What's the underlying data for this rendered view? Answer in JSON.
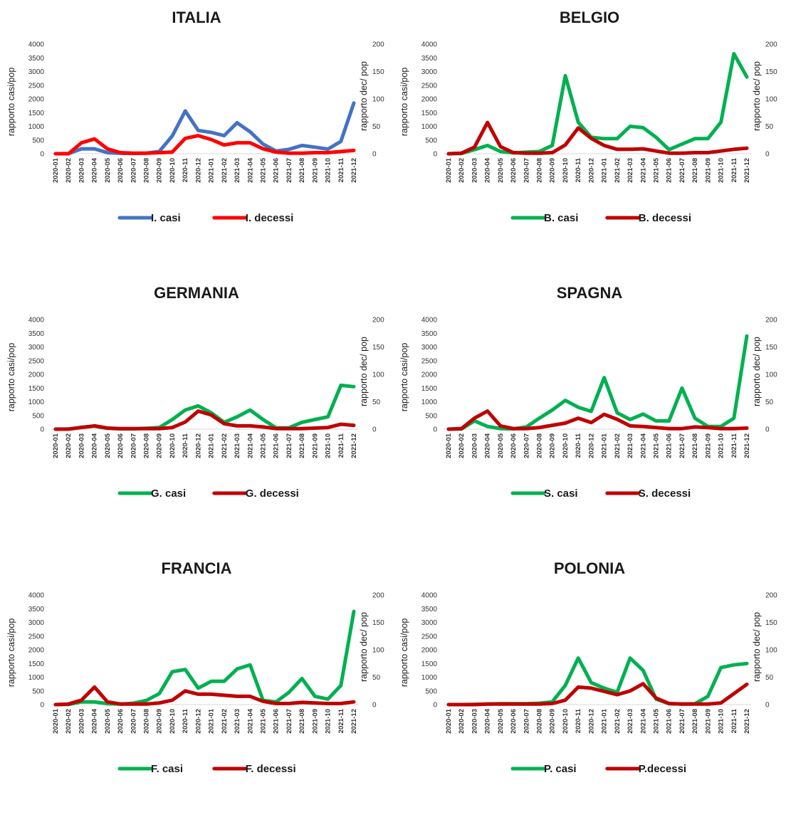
{
  "chart_data": [
    {
      "type": "line",
      "title": "ITALIA",
      "ylabel": "rapporto casi/pop",
      "y2label": "rapporto dec/ pop",
      "ylim": [
        0,
        4000
      ],
      "y2lim": [
        0,
        200
      ],
      "yticks": [
        "0",
        "500",
        "1000",
        "1500",
        "2000",
        "2500",
        "3000",
        "3500",
        "4000"
      ],
      "y2ticks": [
        "0",
        "50",
        "100",
        "150",
        "200"
      ],
      "x": [
        "2020-01",
        "2020-02",
        "2020-03",
        "2020-04",
        "2020-05",
        "2020-06",
        "2020-07",
        "2020-08",
        "2020-09",
        "2020-10",
        "2020-11",
        "2020-12",
        "2021-01",
        "2021-02",
        "2021-03",
        "2021-04",
        "2021-05",
        "2021-06",
        "2021-07",
        "2021-08",
        "2021-09",
        "2021-10",
        "2021-11",
        "2021-12"
      ],
      "legend": "bottom",
      "series": [
        {
          "name": "I. casi",
          "axis": "left",
          "color": "#4472c4",
          "values": [
            0,
            5,
            180,
            180,
            40,
            15,
            10,
            20,
            80,
            650,
            1560,
            850,
            780,
            660,
            1130,
            800,
            350,
            100,
            160,
            300,
            240,
            170,
            450,
            1850
          ]
        },
        {
          "name": "I. decessi",
          "axis": "right",
          "color": "#ff0000",
          "values": [
            0,
            0,
            20,
            27,
            9,
            2,
            1,
            1,
            2,
            3,
            28,
            33,
            26,
            16,
            20,
            20,
            9,
            3,
            1,
            1,
            2,
            2,
            4,
            6
          ]
        }
      ]
    },
    {
      "type": "line",
      "title": "BELGIO",
      "ylabel": "rapporto casi/pop",
      "y2label": "rapporto dec/ pop",
      "ylim": [
        0,
        4000
      ],
      "y2lim": [
        0,
        200
      ],
      "yticks": [
        "0",
        "500",
        "1000",
        "1500",
        "2000",
        "2500",
        "3000",
        "3500",
        "4000"
      ],
      "y2ticks": [
        "0",
        "50",
        "100",
        "150",
        "200"
      ],
      "x": [
        "2020-01",
        "2020-02",
        "2020-03",
        "2020-04",
        "2020-05",
        "2020-06",
        "2020-07",
        "2020-08",
        "2020-09",
        "2020-10",
        "2020-11",
        "2020-12",
        "2021-01",
        "2021-02",
        "2021-03",
        "2021-04",
        "2021-05",
        "2021-06",
        "2021-07",
        "2021-08",
        "2021-09",
        "2021-10",
        "2021-11",
        "2021-12"
      ],
      "legend": "bottom",
      "series": [
        {
          "name": "B. casi",
          "axis": "left",
          "color": "#00b050",
          "values": [
            0,
            10,
            150,
            300,
            80,
            30,
            60,
            80,
            300,
            2850,
            1150,
            600,
            550,
            550,
            1000,
            950,
            600,
            150,
            350,
            550,
            550,
            1150,
            3650,
            2800
          ]
        },
        {
          "name": "B. decessi",
          "axis": "right",
          "color": "#c00000",
          "values": [
            0,
            1,
            12,
            57,
            13,
            2,
            1,
            1,
            2,
            16,
            47,
            28,
            15,
            8,
            8,
            9,
            5,
            1,
            1,
            2,
            2,
            5,
            8,
            10
          ]
        }
      ]
    },
    {
      "type": "line",
      "title": "GERMANIA",
      "ylabel": "rapporto casi/pop",
      "y2label": "rapporto dec/ pop",
      "ylim": [
        0,
        4000
      ],
      "y2lim": [
        0,
        200
      ],
      "yticks": [
        "0",
        "500",
        "1000",
        "1500",
        "2000",
        "2500",
        "3000",
        "3500",
        "4000"
      ],
      "y2ticks": [
        "0",
        "50",
        "100",
        "150",
        "200"
      ],
      "x": [
        "2020-01",
        "2020-02",
        "2020-03",
        "2020-04",
        "2020-05",
        "2020-06",
        "2020-07",
        "2020-08",
        "2020-09",
        "2020-10",
        "2020-11",
        "2020-12",
        "2021-01",
        "2021-02",
        "2021-03",
        "2021-04",
        "2021-05",
        "2021-06",
        "2021-07",
        "2021-08",
        "2021-09",
        "2021-10",
        "2021-11",
        "2021-12"
      ],
      "legend": "bottom",
      "series": [
        {
          "name": "G. casi",
          "axis": "left",
          "color": "#00b050",
          "values": [
            0,
            5,
            70,
            110,
            30,
            10,
            10,
            30,
            60,
            350,
            700,
            850,
            600,
            250,
            450,
            700,
            350,
            50,
            50,
            250,
            350,
            450,
            1600,
            1550
          ]
        },
        {
          "name": "G. decessi",
          "axis": "right",
          "color": "#c00000",
          "values": [
            0,
            0,
            3,
            6,
            2,
            1,
            1,
            1,
            1,
            3,
            13,
            33,
            26,
            10,
            6,
            6,
            4,
            1,
            1,
            1,
            2,
            3,
            9,
            7
          ]
        }
      ]
    },
    {
      "type": "line",
      "title": "SPAGNA",
      "ylabel": "rapporto casi/pop",
      "y2label": "rapporto dec/ pop",
      "ylim": [
        0,
        4000
      ],
      "y2lim": [
        0,
        200
      ],
      "yticks": [
        "0",
        "500",
        "1000",
        "1500",
        "2000",
        "2500",
        "3000",
        "3500",
        "4000"
      ],
      "y2ticks": [
        "0",
        "50",
        "100",
        "150",
        "200"
      ],
      "x": [
        "2020-01",
        "2020-02",
        "2020-03",
        "2020-04",
        "2020-05",
        "2020-06",
        "2020-07",
        "2020-08",
        "2020-09",
        "2020-10",
        "2020-11",
        "2020-12",
        "2021-01",
        "2021-02",
        "2021-03",
        "2021-04",
        "2021-05",
        "2021-06",
        "2021-07",
        "2021-08",
        "2021-09",
        "2021-10",
        "2021-11",
        "2021-12"
      ],
      "legend": "bottom",
      "series": [
        {
          "name": "S. casi",
          "axis": "left",
          "color": "#00b050",
          "values": [
            0,
            5,
            300,
            100,
            20,
            10,
            80,
            400,
            700,
            1050,
            800,
            650,
            1880,
            600,
            350,
            550,
            300,
            300,
            1500,
            400,
            100,
            100,
            400,
            3400
          ]
        },
        {
          "name": "S. decessi",
          "axis": "right",
          "color": "#c00000",
          "values": [
            0,
            1,
            20,
            33,
            6,
            1,
            1,
            3,
            7,
            11,
            20,
            12,
            27,
            18,
            6,
            5,
            3,
            1,
            1,
            4,
            3,
            1,
            1,
            2
          ]
        }
      ]
    },
    {
      "type": "line",
      "title": "FRANCIA",
      "ylabel": "rapporto casi/pop",
      "y2label": "rapporto dec/ pop",
      "ylim": [
        0,
        4000
      ],
      "y2lim": [
        0,
        200
      ],
      "yticks": [
        "0",
        "500",
        "1000",
        "1500",
        "2000",
        "2500",
        "3000",
        "3500",
        "4000"
      ],
      "y2ticks": [
        "0",
        "50",
        "100",
        "150",
        "200"
      ],
      "x": [
        "2020-01",
        "2020-02",
        "2020-03",
        "2020-04",
        "2020-05",
        "2020-06",
        "2020-07",
        "2020-08",
        "2020-09",
        "2020-10",
        "2020-11",
        "2020-12",
        "2021-01",
        "2021-02",
        "2021-03",
        "2021-04",
        "2021-05",
        "2021-06",
        "2021-07",
        "2021-08",
        "2021-09",
        "2021-10",
        "2021-11",
        "2021-12"
      ],
      "legend": "bottom",
      "series": [
        {
          "name": "F. casi",
          "axis": "left",
          "color": "#00b050",
          "values": [
            0,
            5,
            100,
            100,
            30,
            20,
            50,
            150,
            400,
            1200,
            1280,
            600,
            850,
            850,
            1300,
            1450,
            150,
            100,
            450,
            950,
            300,
            200,
            700,
            3400
          ]
        },
        {
          "name": "F. decessi",
          "axis": "right",
          "color": "#c00000",
          "values": [
            0,
            1,
            8,
            32,
            5,
            1,
            1,
            1,
            3,
            8,
            25,
            19,
            19,
            17,
            15,
            15,
            6,
            2,
            2,
            4,
            3,
            2,
            2,
            5
          ]
        }
      ]
    },
    {
      "type": "line",
      "title": "POLONIA",
      "ylabel": "rapporto casi/pop",
      "y2label": "rapporto dec/ pop",
      "ylim": [
        0,
        4000
      ],
      "y2lim": [
        0,
        200
      ],
      "yticks": [
        "0",
        "500",
        "1000",
        "1500",
        "2000",
        "2500",
        "3000",
        "3500",
        "4000"
      ],
      "y2ticks": [
        "0",
        "50",
        "100",
        "150",
        "200"
      ],
      "x": [
        "2020-01",
        "2020-02",
        "2020-03",
        "2020-04",
        "2020-05",
        "2020-06",
        "2020-07",
        "2020-08",
        "2020-09",
        "2020-10",
        "2020-11",
        "2020-12",
        "2021-01",
        "2021-02",
        "2021-03",
        "2021-04",
        "2021-05",
        "2021-06",
        "2021-07",
        "2021-08",
        "2021-09",
        "2021-10",
        "2021-11",
        "2021-12"
      ],
      "legend": "bottom",
      "series": [
        {
          "name": "P. casi",
          "axis": "left",
          "color": "#00b050",
          "values": [
            0,
            0,
            5,
            20,
            30,
            30,
            30,
            50,
            100,
            700,
            1700,
            800,
            600,
            450,
            1700,
            1250,
            200,
            30,
            20,
            30,
            300,
            1350,
            1450,
            1500
          ]
        },
        {
          "name": "P.decessi",
          "axis": "right",
          "color": "#c00000",
          "values": [
            0,
            0,
            0,
            1,
            1,
            1,
            1,
            1,
            2,
            8,
            32,
            30,
            24,
            18,
            25,
            38,
            12,
            2,
            1,
            1,
            1,
            3,
            20,
            37
          ]
        }
      ]
    }
  ]
}
